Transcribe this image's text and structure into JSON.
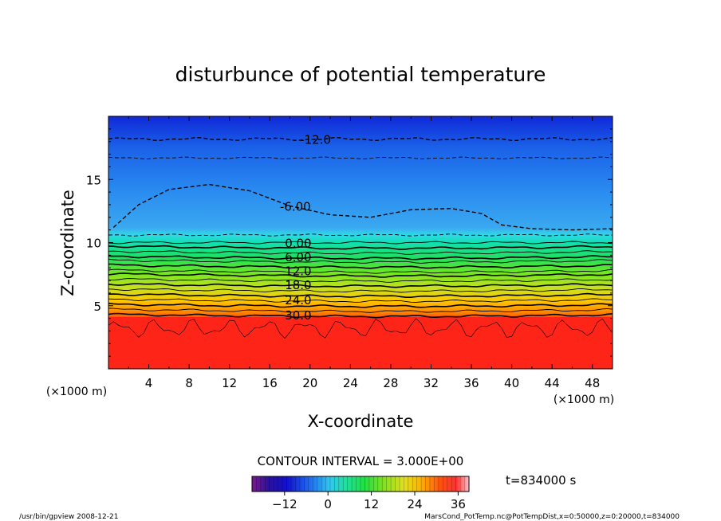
{
  "chart_data": {
    "type": "heatmap",
    "title": "disturbunce of potential temperature",
    "xlabel": "X-coordinate",
    "ylabel": "Z-coordinate",
    "x_unit_label": "(×1000 m)",
    "y_unit_label": "(×1000 m)",
    "xlim": [
      0,
      50
    ],
    "ylim": [
      0,
      20
    ],
    "x_ticks": [
      4,
      8,
      12,
      16,
      20,
      24,
      28,
      32,
      36,
      40,
      44,
      48
    ],
    "y_ticks": [
      5,
      10,
      15
    ],
    "contour_interval_text": "CONTOUR INTERVAL = 3.000E+00",
    "time_label": "t=834000 s",
    "contour_labels": [
      {
        "value": -12,
        "text": "-12.0",
        "x": 19,
        "z": 18.2
      },
      {
        "value": -6,
        "text": "-6.00",
        "x": 17,
        "z": 12.9
      },
      {
        "value": 0,
        "text": "0.00",
        "x": 17.5,
        "z": 10.0
      },
      {
        "value": 6,
        "text": "6.00",
        "x": 17.5,
        "z": 8.9
      },
      {
        "value": 12,
        "text": "12.0",
        "x": 17.5,
        "z": 7.8
      },
      {
        "value": 18,
        "text": "18.0",
        "x": 17.5,
        "z": 6.7
      },
      {
        "value": 24,
        "text": "24.0",
        "x": 17.5,
        "z": 5.5
      },
      {
        "value": 30,
        "text": "30.0",
        "x": 17.5,
        "z": 4.3
      }
    ],
    "colorbar": {
      "range": [
        -21,
        39
      ],
      "tick_values": [
        -12,
        0,
        12,
        24,
        36
      ],
      "tick_labels": [
        "−12",
        "0",
        "12",
        "24",
        "36"
      ]
    }
  },
  "footer": {
    "left": "/usr/bin/gpview   2008-12-21",
    "right": "MarsCond_PotTemp.nc@PotTempDist,x=0:50000,z=0:20000,t=834000"
  },
  "colors": {
    "low": "#1010c0",
    "mid": "#20e060",
    "high": "#ff2000",
    "contour": "#000000"
  }
}
